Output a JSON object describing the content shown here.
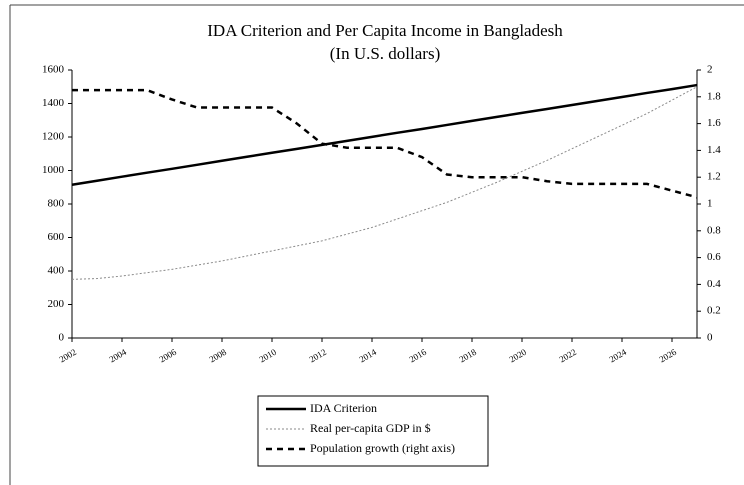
{
  "chart_data": {
    "type": "line",
    "title": "IDA Criterion and Per Capita Income in Bangladesh",
    "subtitle": "(In U.S. dollars)",
    "categories": [
      "2002",
      null,
      "2004",
      null,
      "2006",
      null,
      "2008",
      null,
      "2010",
      null,
      "2012",
      null,
      "2014",
      null,
      "2016",
      null,
      "2018",
      null,
      "2020",
      null,
      "2022",
      null,
      "2024",
      null,
      "2026",
      null
    ],
    "series": [
      {
        "name": "IDA Criterion",
        "color": "#000000",
        "linestyle": "solid",
        "values": [
          915,
          939,
          963,
          987,
          1010,
          1034,
          1058,
          1082,
          1106,
          1129,
          1153,
          1177,
          1201,
          1225,
          1248,
          1272,
          1296,
          1320,
          1344,
          1367,
          1391,
          1415,
          1439,
          1463,
          1486,
          1510
        ]
      },
      {
        "name": "Real per-capita GDP in $",
        "color": "#8a8a8a",
        "linestyle": "dotted",
        "values": [
          350,
          355,
          370,
          390,
          410,
          435,
          460,
          490,
          520,
          550,
          580,
          620,
          660,
          710,
          760,
          810,
          870,
          930,
          995,
          1060,
          1130,
          1200,
          1270,
          1340,
          1420,
          1500
        ]
      },
      {
        "name": "Population growth (right axis)",
        "color": "#000000",
        "linestyle": "dashed",
        "axis": "y2",
        "values": [
          1.85,
          1.85,
          1.85,
          1.85,
          1.78,
          1.72,
          1.72,
          1.72,
          1.72,
          1.6,
          1.45,
          1.42,
          1.42,
          1.42,
          1.35,
          1.22,
          1.2,
          1.2,
          1.2,
          1.17,
          1.15,
          1.15,
          1.15,
          1.15,
          1.1,
          1.05
        ]
      }
    ],
    "ylim": [
      0,
      1600
    ],
    "yticks": [
      0,
      200,
      400,
      600,
      800,
      1000,
      1200,
      1400,
      1600
    ],
    "y2lim": [
      0,
      2
    ],
    "y2ticks": [
      0,
      0.2,
      0.4,
      0.6,
      0.8,
      1,
      1.2,
      1.4,
      1.6,
      1.8,
      2
    ],
    "legend": "bottom"
  }
}
